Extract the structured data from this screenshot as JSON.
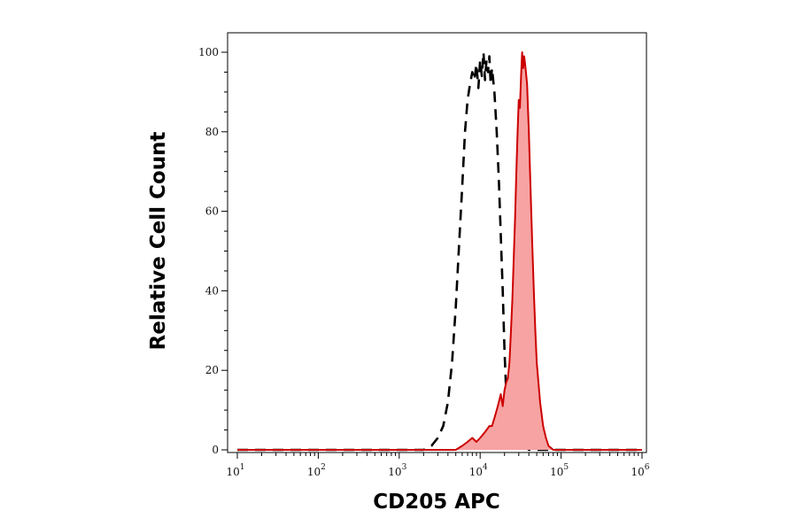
{
  "chart_data": {
    "type": "area",
    "xlabel": "CD205 APC",
    "ylabel": "Relative Cell Count",
    "x_scale": "log",
    "xlim": [
      10,
      1000000
    ],
    "ylim": [
      0,
      100
    ],
    "x_ticks": [
      {
        "base": "10",
        "exp": "1"
      },
      {
        "base": "10",
        "exp": "2"
      },
      {
        "base": "10",
        "exp": "3"
      },
      {
        "base": "10",
        "exp": "4"
      },
      {
        "base": "10",
        "exp": "5"
      },
      {
        "base": "10",
        "exp": "6"
      }
    ],
    "x_tick_values": [
      10,
      100,
      1000,
      10000,
      100000,
      1000000
    ],
    "y_ticks": [
      "0",
      "20",
      "40",
      "60",
      "80",
      "100"
    ],
    "y_tick_values": [
      0,
      20,
      40,
      60,
      80,
      100
    ],
    "grid": false,
    "legend": "none",
    "series": [
      {
        "style": "dashed",
        "color": "#000000",
        "x": [
          10,
          2000,
          2500,
          3000,
          3500,
          4000,
          4500,
          5000,
          5500,
          6000,
          6500,
          7000,
          7500,
          8000,
          8500,
          9000,
          9500,
          10000,
          10500,
          11000,
          11500,
          12000,
          12500,
          13000,
          13500,
          14000,
          15000,
          16000,
          17000,
          18000,
          19000,
          20000,
          21000,
          22000,
          23000,
          24000,
          25000,
          27000,
          30000,
          33000,
          36000,
          40000,
          1000000
        ],
        "y": [
          0,
          0,
          1,
          3,
          6,
          12,
          22,
          36,
          52,
          66,
          80,
          88,
          92,
          95,
          93,
          97,
          91,
          98,
          94,
          100,
          93,
          98,
          95,
          99,
          92,
          96,
          90,
          80,
          68,
          54,
          40,
          25,
          14,
          8,
          4,
          2,
          1,
          2,
          1,
          2,
          1,
          0,
          0
        ]
      },
      {
        "style": "filled",
        "color": "#cc0000",
        "fill": "#f7a3a3",
        "x": [
          10,
          5000,
          6000,
          7000,
          8000,
          9000,
          10000,
          11000,
          12000,
          13000,
          14000,
          15000,
          16000,
          17000,
          18000,
          19000,
          20000,
          21000,
          22000,
          23000,
          24000,
          25000,
          26000,
          27000,
          28000,
          29000,
          30000,
          31000,
          32000,
          33000,
          34000,
          35000,
          36000,
          38000,
          40000,
          42000,
          44000,
          46000,
          48000,
          50000,
          55000,
          60000,
          65000,
          70000,
          75000,
          80000,
          1000000
        ],
        "y": [
          0,
          0,
          1,
          2,
          3,
          2,
          3,
          4,
          5,
          6,
          6,
          8,
          10,
          12,
          14,
          11,
          15,
          17,
          18,
          22,
          30,
          38,
          48,
          58,
          70,
          80,
          88,
          86,
          94,
          100,
          96,
          99,
          97,
          92,
          80,
          65,
          52,
          40,
          30,
          22,
          12,
          6,
          3,
          1,
          0.5,
          0,
          0
        ]
      }
    ]
  }
}
